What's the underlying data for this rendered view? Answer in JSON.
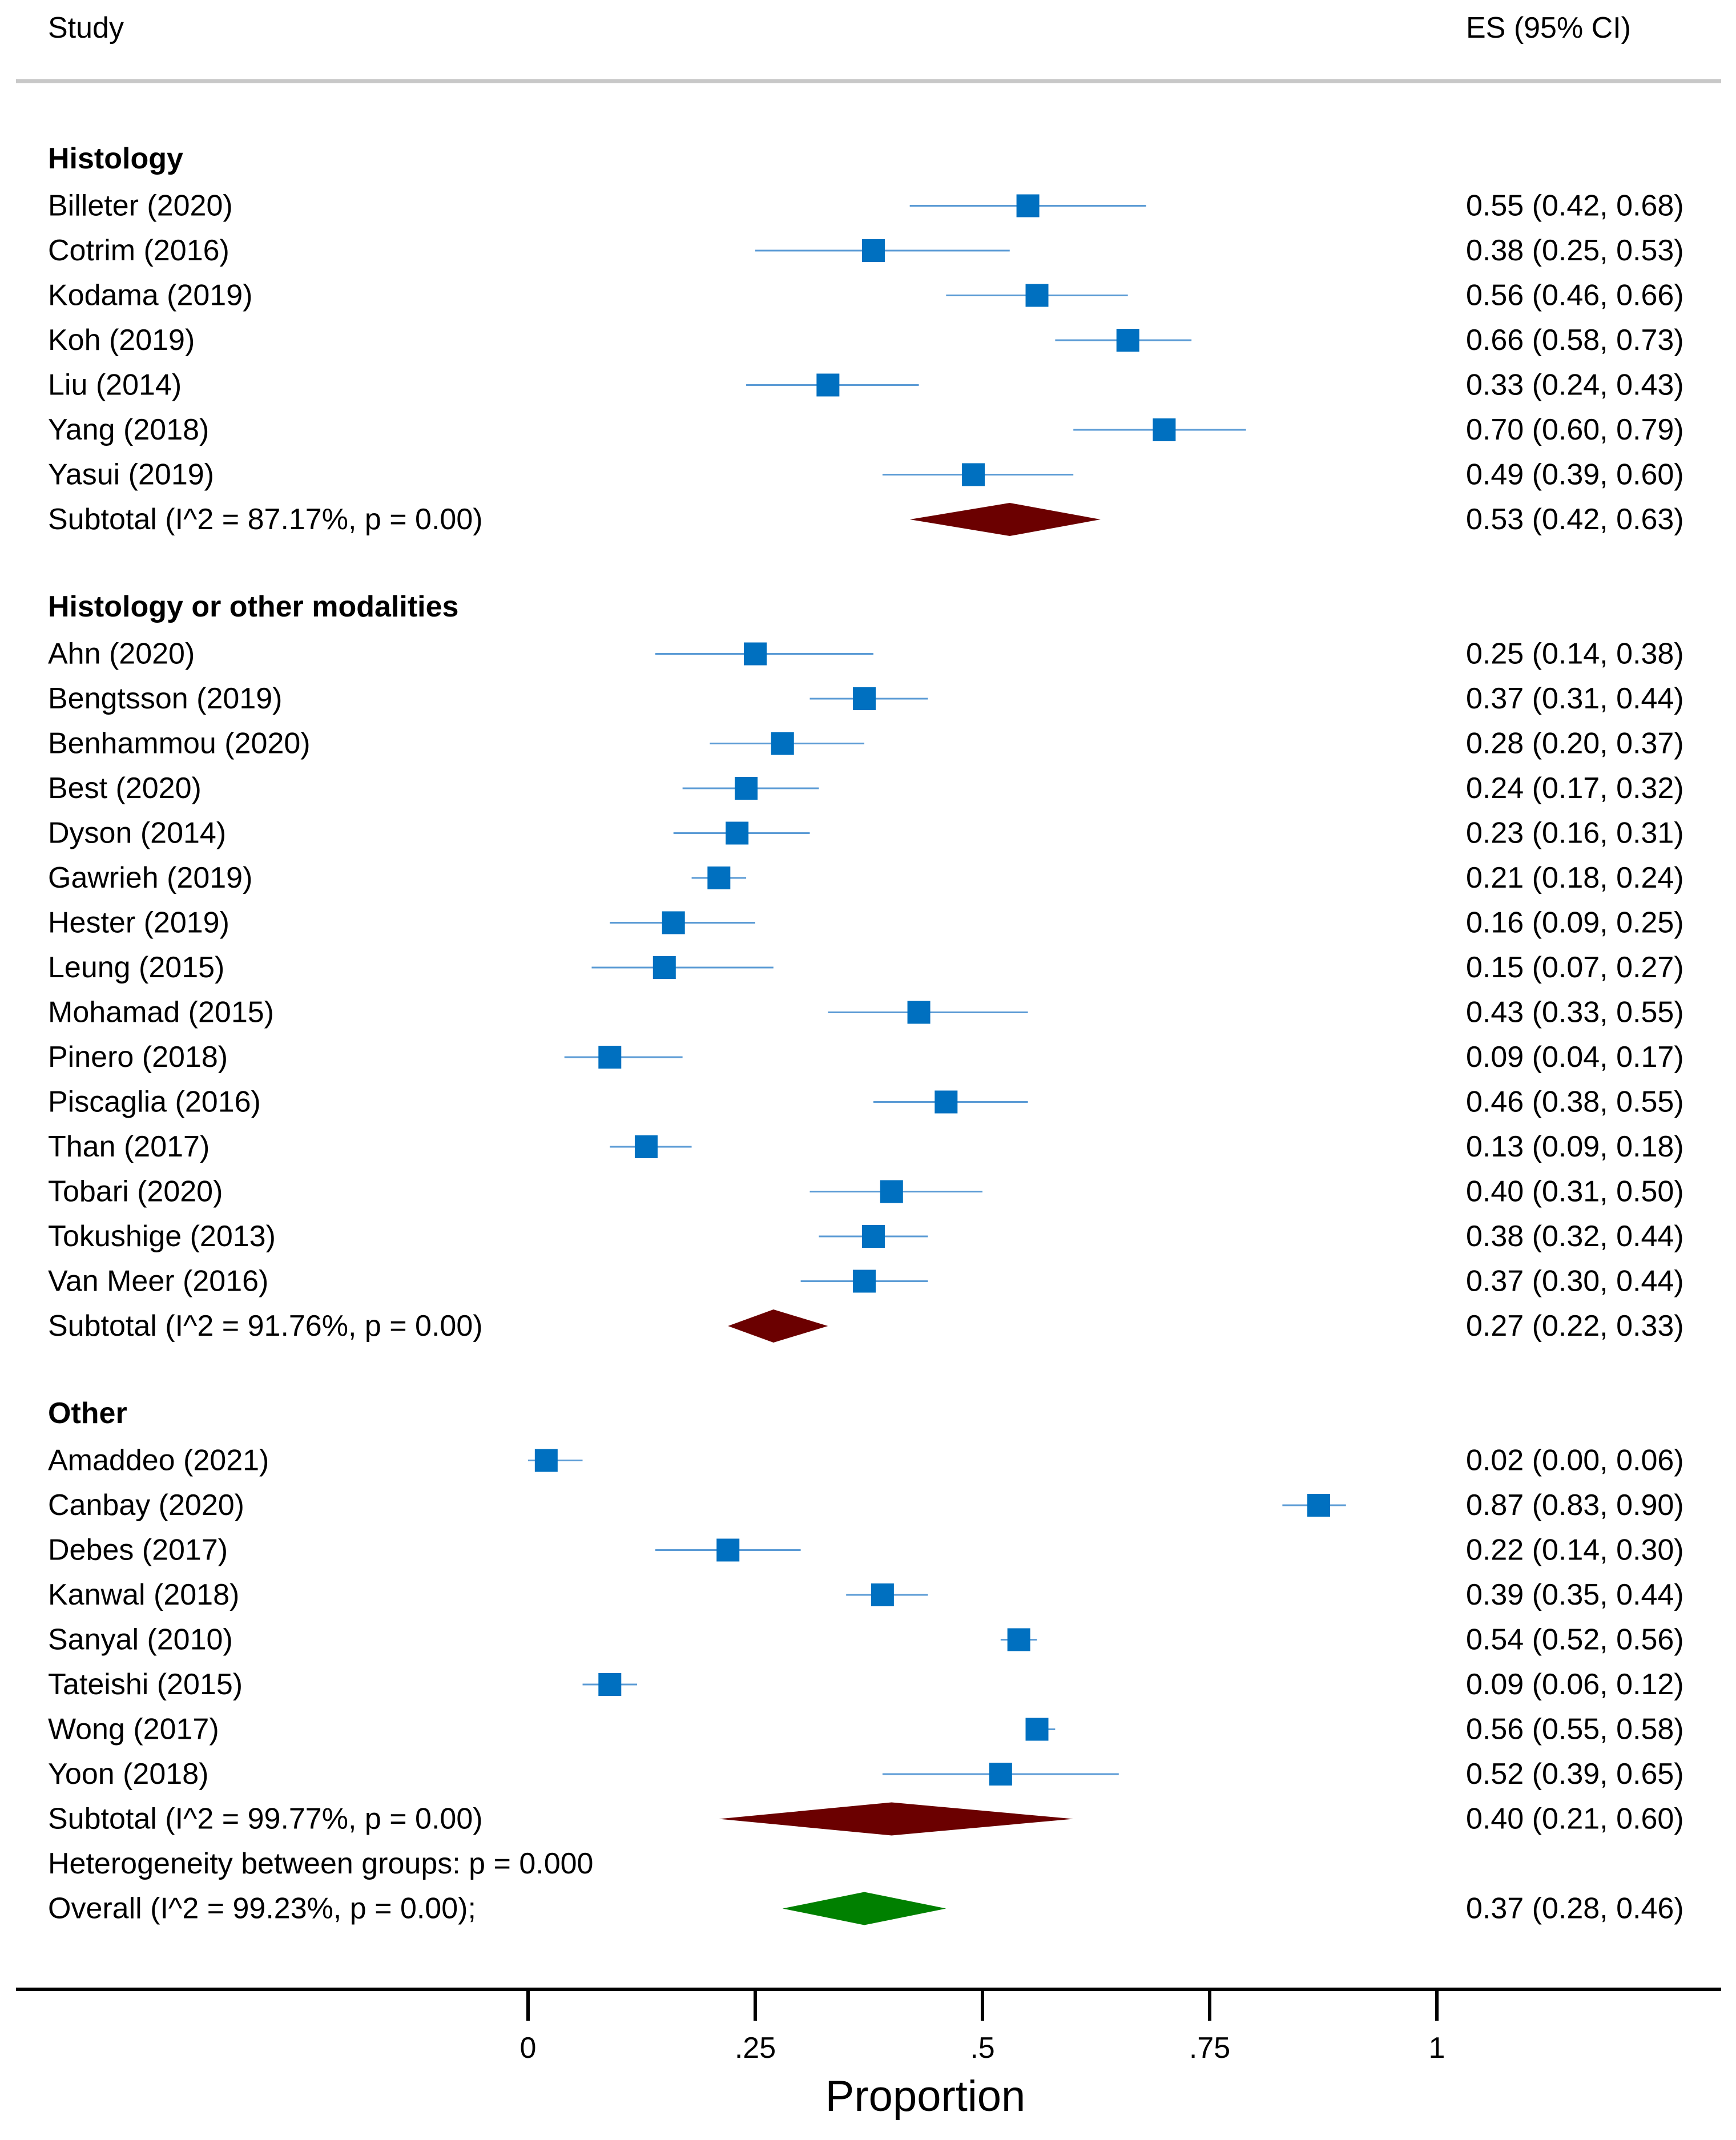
{
  "chart_data": {
    "type": "forest",
    "headers": {
      "study": "Study",
      "es": "ES (95% CI)"
    },
    "groups": [
      {
        "name": "Histology",
        "studies": [
          {
            "label": "Billeter (2020)",
            "es": 0.55,
            "lo": 0.42,
            "hi": 0.68,
            "text": "0.55 (0.42, 0.68)"
          },
          {
            "label": "Cotrim (2016)",
            "es": 0.38,
            "lo": 0.25,
            "hi": 0.53,
            "text": "0.38 (0.25, 0.53)"
          },
          {
            "label": "Kodama (2019)",
            "es": 0.56,
            "lo": 0.46,
            "hi": 0.66,
            "text": "0.56 (0.46, 0.66)"
          },
          {
            "label": "Koh (2019)",
            "es": 0.66,
            "lo": 0.58,
            "hi": 0.73,
            "text": "0.66 (0.58, 0.73)"
          },
          {
            "label": "Liu (2014)",
            "es": 0.33,
            "lo": 0.24,
            "hi": 0.43,
            "text": "0.33 (0.24, 0.43)"
          },
          {
            "label": "Yang (2018)",
            "es": 0.7,
            "lo": 0.6,
            "hi": 0.79,
            "text": "0.70 (0.60, 0.79)"
          },
          {
            "label": "Yasui (2019)",
            "es": 0.49,
            "lo": 0.39,
            "hi": 0.6,
            "text": "0.49 (0.39, 0.60)"
          }
        ],
        "subtotal": {
          "label": "Subtotal  (I^2 = 87.17%, p = 0.00)",
          "es": 0.53,
          "lo": 0.42,
          "hi": 0.63,
          "text": "0.53 (0.42, 0.63)"
        }
      },
      {
        "name": "Histology or other modalities",
        "studies": [
          {
            "label": "Ahn (2020)",
            "es": 0.25,
            "lo": 0.14,
            "hi": 0.38,
            "text": "0.25 (0.14, 0.38)"
          },
          {
            "label": "Bengtsson (2019)",
            "es": 0.37,
            "lo": 0.31,
            "hi": 0.44,
            "text": "0.37 (0.31, 0.44)"
          },
          {
            "label": "Benhammou (2020)",
            "es": 0.28,
            "lo": 0.2,
            "hi": 0.37,
            "text": "0.28 (0.20, 0.37)"
          },
          {
            "label": "Best (2020)",
            "es": 0.24,
            "lo": 0.17,
            "hi": 0.32,
            "text": "0.24 (0.17, 0.32)"
          },
          {
            "label": "Dyson (2014)",
            "es": 0.23,
            "lo": 0.16,
            "hi": 0.31,
            "text": "0.23 (0.16, 0.31)"
          },
          {
            "label": "Gawrieh (2019)",
            "es": 0.21,
            "lo": 0.18,
            "hi": 0.24,
            "text": "0.21 (0.18, 0.24)"
          },
          {
            "label": "Hester (2019)",
            "es": 0.16,
            "lo": 0.09,
            "hi": 0.25,
            "text": "0.16 (0.09, 0.25)"
          },
          {
            "label": "Leung (2015)",
            "es": 0.15,
            "lo": 0.07,
            "hi": 0.27,
            "text": "0.15 (0.07, 0.27)"
          },
          {
            "label": "Mohamad (2015)",
            "es": 0.43,
            "lo": 0.33,
            "hi": 0.55,
            "text": "0.43 (0.33, 0.55)"
          },
          {
            "label": "Pinero (2018)",
            "es": 0.09,
            "lo": 0.04,
            "hi": 0.17,
            "text": "0.09 (0.04, 0.17)"
          },
          {
            "label": "Piscaglia (2016)",
            "es": 0.46,
            "lo": 0.38,
            "hi": 0.55,
            "text": "0.46 (0.38, 0.55)"
          },
          {
            "label": "Than (2017)",
            "es": 0.13,
            "lo": 0.09,
            "hi": 0.18,
            "text": "0.13 (0.09, 0.18)"
          },
          {
            "label": "Tobari (2020)",
            "es": 0.4,
            "lo": 0.31,
            "hi": 0.5,
            "text": "0.40 (0.31, 0.50)"
          },
          {
            "label": "Tokushige (2013)",
            "es": 0.38,
            "lo": 0.32,
            "hi": 0.44,
            "text": "0.38 (0.32, 0.44)"
          },
          {
            "label": "Van Meer (2016)",
            "es": 0.37,
            "lo": 0.3,
            "hi": 0.44,
            "text": "0.37 (0.30, 0.44)"
          }
        ],
        "subtotal": {
          "label": "Subtotal  (I^2 = 91.76%, p = 0.00)",
          "es": 0.27,
          "lo": 0.22,
          "hi": 0.33,
          "text": "0.27 (0.22, 0.33)"
        }
      },
      {
        "name": "Other",
        "studies": [
          {
            "label": "Amaddeo (2021)",
            "es": 0.02,
            "lo": 0.0,
            "hi": 0.06,
            "text": "0.02 (0.00, 0.06)"
          },
          {
            "label": "Canbay (2020)",
            "es": 0.87,
            "lo": 0.83,
            "hi": 0.9,
            "text": "0.87 (0.83, 0.90)"
          },
          {
            "label": "Debes (2017)",
            "es": 0.22,
            "lo": 0.14,
            "hi": 0.3,
            "text": "0.22 (0.14, 0.30)"
          },
          {
            "label": "Kanwal (2018)",
            "es": 0.39,
            "lo": 0.35,
            "hi": 0.44,
            "text": "0.39 (0.35, 0.44)"
          },
          {
            "label": "Sanyal (2010)",
            "es": 0.54,
            "lo": 0.52,
            "hi": 0.56,
            "text": "0.54 (0.52, 0.56)"
          },
          {
            "label": "Tateishi (2015)",
            "es": 0.09,
            "lo": 0.06,
            "hi": 0.12,
            "text": "0.09 (0.06, 0.12)"
          },
          {
            "label": "Wong (2017)",
            "es": 0.56,
            "lo": 0.55,
            "hi": 0.58,
            "text": "0.56 (0.55, 0.58)"
          },
          {
            "label": "Yoon (2018)",
            "es": 0.52,
            "lo": 0.39,
            "hi": 0.65,
            "text": "0.52 (0.39, 0.65)"
          }
        ],
        "subtotal": {
          "label": "Subtotal  (I^2 = 99.77%, p = 0.00)",
          "es": 0.4,
          "lo": 0.21,
          "hi": 0.6,
          "text": "0.40 (0.21, 0.60)"
        }
      }
    ],
    "heterogeneity": "Heterogeneity between groups: p = 0.000",
    "overall": {
      "label": "Overall  (I^2 = 99.23%, p = 0.00);",
      "es": 0.37,
      "lo": 0.28,
      "hi": 0.46,
      "text": "0.37 (0.28, 0.46)"
    },
    "x_axis": {
      "label": "Proportion",
      "range": [
        0,
        1
      ],
      "ticks": [
        {
          "value": 0,
          "label": "0"
        },
        {
          "value": 0.25,
          "label": ".25"
        },
        {
          "value": 0.5,
          "label": ".5"
        },
        {
          "value": 0.75,
          "label": ".75"
        },
        {
          "value": 1,
          "label": "1"
        }
      ]
    },
    "colors": {
      "study_marker": "#0070c0",
      "ci_line": "#5b9bd5",
      "subtotal_diamond": "#6b0000",
      "overall_diamond": "#008000",
      "separator": "#c8c8c8",
      "axis": "#000000"
    }
  }
}
